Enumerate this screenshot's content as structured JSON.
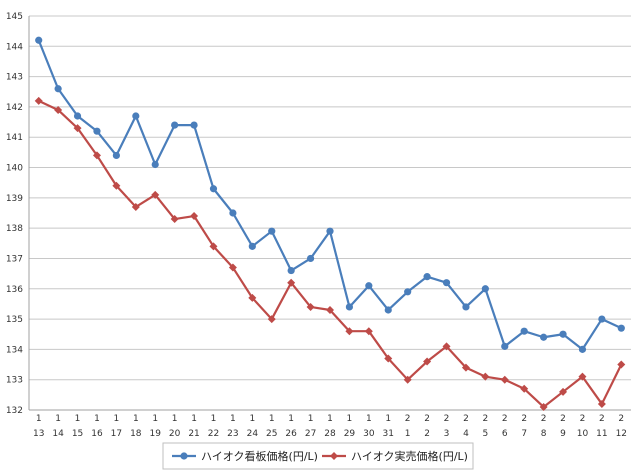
{
  "chart_data": {
    "type": "line",
    "title": "",
    "xlabel": "",
    "ylabel": "",
    "ylim": [
      132,
      145
    ],
    "yticks": [
      132,
      133,
      134,
      135,
      136,
      137,
      138,
      139,
      140,
      141,
      142,
      143,
      144,
      145
    ],
    "grid": "horizontal",
    "legend_position": "bottom",
    "categories": [
      {
        "month": "1",
        "day": "13"
      },
      {
        "month": "1",
        "day": "14"
      },
      {
        "month": "1",
        "day": "15"
      },
      {
        "month": "1",
        "day": "16"
      },
      {
        "month": "1",
        "day": "17"
      },
      {
        "month": "1",
        "day": "18"
      },
      {
        "month": "1",
        "day": "19"
      },
      {
        "month": "1",
        "day": "20"
      },
      {
        "month": "1",
        "day": "21"
      },
      {
        "month": "1",
        "day": "22"
      },
      {
        "month": "1",
        "day": "23"
      },
      {
        "month": "1",
        "day": "24"
      },
      {
        "month": "1",
        "day": "25"
      },
      {
        "month": "1",
        "day": "26"
      },
      {
        "month": "1",
        "day": "27"
      },
      {
        "month": "1",
        "day": "28"
      },
      {
        "month": "1",
        "day": "29"
      },
      {
        "month": "1",
        "day": "30"
      },
      {
        "month": "1",
        "day": "31"
      },
      {
        "month": "2",
        "day": "1"
      },
      {
        "month": "2",
        "day": "2"
      },
      {
        "month": "2",
        "day": "3"
      },
      {
        "month": "2",
        "day": "4"
      },
      {
        "month": "2",
        "day": "5"
      },
      {
        "month": "2",
        "day": "6"
      },
      {
        "month": "2",
        "day": "7"
      },
      {
        "month": "2",
        "day": "8"
      },
      {
        "month": "2",
        "day": "9"
      },
      {
        "month": "2",
        "day": "10"
      },
      {
        "month": "2",
        "day": "11"
      },
      {
        "month": "2",
        "day": "12"
      }
    ],
    "series": [
      {
        "name": "ハイオク看板価格(円/L)",
        "color": "#4a7ebb",
        "marker": "circle",
        "values": [
          144.2,
          142.6,
          141.7,
          141.2,
          140.4,
          141.7,
          140.1,
          141.4,
          141.4,
          139.3,
          138.5,
          137.4,
          137.9,
          136.6,
          137.0,
          137.9,
          135.4,
          136.1,
          135.3,
          135.9,
          136.4,
          136.2,
          135.4,
          136.0,
          134.1,
          134.6,
          134.4,
          134.5,
          134.0,
          135.0,
          134.7
        ]
      },
      {
        "name": "ハイオク実売価格(円/L)",
        "color": "#be4b48",
        "marker": "diamond",
        "values": [
          142.2,
          141.9,
          141.3,
          140.4,
          139.4,
          138.7,
          139.1,
          138.3,
          138.4,
          137.4,
          136.7,
          135.7,
          135.0,
          136.2,
          135.4,
          135.3,
          134.6,
          134.6,
          133.7,
          133.0,
          133.6,
          134.1,
          133.4,
          133.1,
          133.0,
          132.7,
          132.1,
          132.6,
          133.1,
          132.2,
          133.5
        ]
      }
    ]
  }
}
